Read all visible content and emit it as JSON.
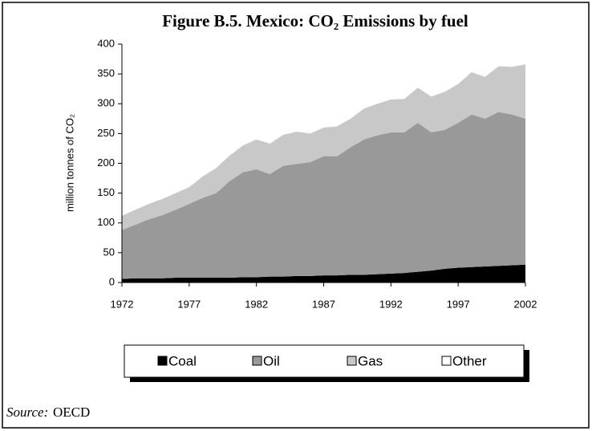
{
  "chart_data": {
    "type": "stacked_area",
    "title": "Figure B.5.  Mexico:  CO₂ Emissions by fuel",
    "y_label": "million tonnes of CO₂",
    "source_label": "Source:",
    "source": "OECD",
    "x": [
      1972,
      1973,
      1974,
      1975,
      1976,
      1977,
      1978,
      1979,
      1980,
      1981,
      1982,
      1983,
      1984,
      1985,
      1986,
      1987,
      1988,
      1989,
      1990,
      1991,
      1992,
      1993,
      1994,
      1995,
      1996,
      1997,
      1998,
      1999,
      2000,
      2001,
      2002
    ],
    "xlim": [
      1972,
      2002
    ],
    "xticks": [
      1972,
      1977,
      1982,
      1987,
      1992,
      1997,
      2002
    ],
    "ylim": [
      0,
      400
    ],
    "yticks": [
      0,
      50,
      100,
      150,
      200,
      250,
      300,
      350,
      400
    ],
    "series": [
      {
        "name": "Coal",
        "color": "#000000",
        "values": [
          6,
          7,
          7,
          7,
          8,
          8,
          8,
          8,
          8,
          9,
          9,
          10,
          10,
          11,
          11,
          12,
          12,
          13,
          13,
          14,
          15,
          16,
          18,
          20,
          23,
          25,
          26,
          27,
          28,
          29,
          30
        ]
      },
      {
        "name": "Oil",
        "color": "#999999",
        "values": [
          82,
          90,
          99,
          106,
          114,
          124,
          134,
          142,
          162,
          176,
          181,
          172,
          186,
          188,
          191,
          200,
          200,
          214,
          227,
          233,
          237,
          236,
          250,
          232,
          233,
          243,
          256,
          248,
          258,
          253,
          245
        ]
      },
      {
        "name": "Gas",
        "color": "#c8c8c8",
        "values": [
          24,
          25,
          26,
          27,
          28,
          28,
          36,
          42,
          43,
          45,
          50,
          51,
          52,
          54,
          48,
          48,
          50,
          48,
          52,
          53,
          55,
          56,
          59,
          60,
          64,
          65,
          71,
          70,
          77,
          80,
          91
        ]
      },
      {
        "name": "Other",
        "color": "#ffffff",
        "values": [
          0,
          0,
          0,
          0,
          0,
          0,
          0,
          0,
          0,
          0,
          0,
          0,
          0,
          0,
          0,
          0,
          0,
          0,
          0,
          0,
          0,
          0,
          0,
          0,
          0,
          0,
          0,
          0,
          0,
          0,
          0
        ]
      }
    ]
  }
}
